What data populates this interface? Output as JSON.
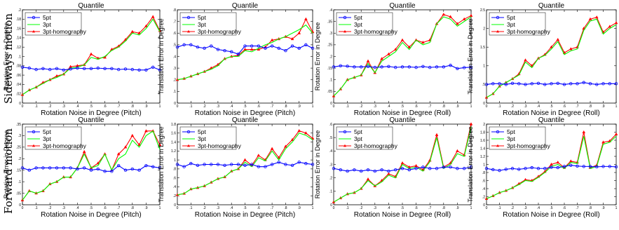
{
  "row_labels": [
    "Sideways motion",
    "Forward motion"
  ],
  "colors": {
    "5pt": "#0000ff",
    "3pt": "#00ff00",
    "3pt-homography": "#ff0000",
    "3pt_line": "#008000"
  },
  "chart_data": [
    {
      "type": "line",
      "title": "Quantile",
      "xlabel": "Rotation Noise in Degree (Pitch)",
      "ylabel": "Rotation Error in Degree",
      "xlim": [
        0,
        1
      ],
      "ylim": [
        0,
        0.2
      ],
      "xticks": [
        0,
        0.1,
        0.2,
        0.3,
        0.4,
        0.5,
        0.6,
        0.7,
        0.8,
        0.9,
        1
      ],
      "yticks": [
        0,
        0.02,
        0.04,
        0.06,
        0.08,
        0.1,
        0.12,
        0.14,
        0.16,
        0.18,
        0.2
      ],
      "legend": "top-left",
      "x": [
        0,
        0.05,
        0.1,
        0.15,
        0.2,
        0.25,
        0.3,
        0.35,
        0.4,
        0.45,
        0.5,
        0.55,
        0.6,
        0.65,
        0.7,
        0.75,
        0.8,
        0.85,
        0.9,
        0.95,
        1
      ],
      "series": [
        {
          "name": "5pt",
          "values": [
            0.077,
            0.075,
            0.072,
            0.074,
            0.072,
            0.074,
            0.071,
            0.073,
            0.075,
            0.074,
            0.074,
            0.075,
            0.074,
            0.074,
            0.072,
            0.073,
            0.072,
            0.071,
            0.071,
            0.077,
            0.071
          ]
        },
        {
          "name": "3pt",
          "values": [
            0.018,
            0.028,
            0.034,
            0.042,
            0.05,
            0.055,
            0.062,
            0.075,
            0.077,
            0.082,
            0.098,
            0.094,
            0.1,
            0.113,
            0.12,
            0.133,
            0.15,
            0.146,
            0.16,
            0.18,
            0.153
          ]
        },
        {
          "name": "3pt-homography",
          "values": [
            0.018,
            0.028,
            0.034,
            0.044,
            0.05,
            0.058,
            0.062,
            0.078,
            0.08,
            0.082,
            0.105,
            0.096,
            0.098,
            0.115,
            0.122,
            0.136,
            0.153,
            0.15,
            0.165,
            0.185,
            0.155
          ]
        }
      ]
    },
    {
      "type": "line",
      "title": "Quantile",
      "xlabel": "Rotation Noise in Degree (Pitch)",
      "ylabel": "Translation Error in Degree",
      "xlim": [
        0,
        1
      ],
      "ylim": [
        0,
        0.8
      ],
      "xticks": [
        0,
        0.1,
        0.2,
        0.3,
        0.4,
        0.5,
        0.6,
        0.7,
        0.8,
        0.9,
        1
      ],
      "yticks": [
        0,
        0.1,
        0.2,
        0.3,
        0.4,
        0.5,
        0.6,
        0.7,
        0.8
      ],
      "legend": "top-left",
      "x": [
        0,
        0.05,
        0.1,
        0.15,
        0.2,
        0.25,
        0.3,
        0.35,
        0.4,
        0.45,
        0.5,
        0.55,
        0.6,
        0.65,
        0.7,
        0.75,
        0.8,
        0.85,
        0.9,
        0.95,
        1
      ],
      "series": [
        {
          "name": "5pt",
          "values": [
            0.48,
            0.5,
            0.5,
            0.48,
            0.47,
            0.49,
            0.46,
            0.45,
            0.44,
            0.42,
            0.49,
            0.49,
            0.49,
            0.47,
            0.49,
            0.47,
            0.45,
            0.49,
            0.47,
            0.5,
            0.47
          ]
        },
        {
          "name": "3pt",
          "values": [
            0.2,
            0.21,
            0.23,
            0.25,
            0.27,
            0.29,
            0.32,
            0.38,
            0.4,
            0.4,
            0.45,
            0.44,
            0.47,
            0.5,
            0.52,
            0.55,
            0.57,
            0.6,
            0.63,
            0.67,
            0.6
          ]
        },
        {
          "name": "3pt-homography",
          "values": [
            0.2,
            0.21,
            0.23,
            0.25,
            0.27,
            0.3,
            0.33,
            0.38,
            0.4,
            0.41,
            0.46,
            0.46,
            0.46,
            0.48,
            0.54,
            0.55,
            0.57,
            0.55,
            0.6,
            0.72,
            0.61
          ]
        }
      ]
    },
    {
      "type": "line",
      "title": "Quantile",
      "xlabel": "Rotation Noise in Degree (Roll)",
      "ylabel": "Rotation Error in Degree",
      "xlim": [
        0,
        1
      ],
      "ylim": [
        0,
        0.4
      ],
      "xticks": [
        0,
        0.1,
        0.2,
        0.3,
        0.4,
        0.5,
        0.6,
        0.7,
        0.8,
        0.9,
        1
      ],
      "yticks": [
        0,
        0.05,
        0.1,
        0.15,
        0.2,
        0.25,
        0.3,
        0.35,
        0.4
      ],
      "legend": "top-left",
      "x": [
        0,
        0.05,
        0.1,
        0.15,
        0.2,
        0.25,
        0.3,
        0.35,
        0.4,
        0.45,
        0.5,
        0.55,
        0.6,
        0.65,
        0.7,
        0.75,
        0.8,
        0.85,
        0.9,
        0.95,
        1
      ],
      "series": [
        {
          "name": "5pt",
          "values": [
            0.155,
            0.16,
            0.158,
            0.155,
            0.155,
            0.157,
            0.153,
            0.155,
            0.157,
            0.153,
            0.155,
            0.155,
            0.153,
            0.157,
            0.153,
            0.155,
            0.155,
            0.162,
            0.148,
            0.152,
            0.154
          ]
        },
        {
          "name": "3pt",
          "values": [
            0.03,
            0.06,
            0.1,
            0.11,
            0.12,
            0.17,
            0.13,
            0.18,
            0.2,
            0.22,
            0.26,
            0.23,
            0.27,
            0.25,
            0.26,
            0.34,
            0.37,
            0.36,
            0.33,
            0.35,
            0.37
          ]
        },
        {
          "name": "3pt-homography",
          "values": [
            0.03,
            0.06,
            0.1,
            0.11,
            0.12,
            0.18,
            0.13,
            0.19,
            0.21,
            0.23,
            0.27,
            0.24,
            0.27,
            0.26,
            0.27,
            0.34,
            0.38,
            0.37,
            0.34,
            0.36,
            0.375
          ]
        }
      ]
    },
    {
      "type": "line",
      "title": "Quantile",
      "xlabel": "Rotation Noise in Degree (Roll)",
      "ylabel": "Translation Error in Degree",
      "xlim": [
        0,
        1
      ],
      "ylim": [
        0,
        2.5
      ],
      "xticks": [
        0,
        0.1,
        0.2,
        0.3,
        0.4,
        0.5,
        0.6,
        0.7,
        0.8,
        0.9,
        1
      ],
      "yticks": [
        0,
        0.5,
        1,
        1.5,
        2,
        2.5
      ],
      "legend": "top-left",
      "x": [
        0,
        0.05,
        0.1,
        0.15,
        0.2,
        0.25,
        0.3,
        0.35,
        0.4,
        0.45,
        0.5,
        0.55,
        0.6,
        0.65,
        0.7,
        0.75,
        0.8,
        0.85,
        0.9,
        0.95,
        1
      ],
      "series": [
        {
          "name": "5pt",
          "values": [
            0.5,
            0.52,
            0.52,
            0.5,
            0.53,
            0.52,
            0.5,
            0.52,
            0.53,
            0.5,
            0.52,
            0.53,
            0.5,
            0.52,
            0.52,
            0.55,
            0.52,
            0.5,
            0.52,
            0.52,
            0.52
          ]
        },
        {
          "name": "3pt",
          "values": [
            0.15,
            0.25,
            0.45,
            0.55,
            0.65,
            0.75,
            1.1,
            0.95,
            1.2,
            1.28,
            1.45,
            1.65,
            1.3,
            1.4,
            1.45,
            1.95,
            2.2,
            2.25,
            1.85,
            2.0,
            2.1
          ]
        },
        {
          "name": "3pt-homography",
          "values": [
            0.15,
            0.25,
            0.45,
            0.55,
            0.65,
            0.78,
            1.15,
            1.0,
            1.2,
            1.3,
            1.5,
            1.7,
            1.35,
            1.45,
            1.5,
            2.0,
            2.25,
            2.3,
            1.9,
            2.05,
            2.15
          ]
        }
      ]
    },
    {
      "type": "line",
      "title": "Quantile",
      "xlabel": "Rotation Noise in Degree (Pitch)",
      "ylabel": "Rotation Error in Degree",
      "xlim": [
        0,
        1
      ],
      "ylim": [
        0,
        0.35
      ],
      "xticks": [
        0,
        0.1,
        0.2,
        0.3,
        0.4,
        0.5,
        0.6,
        0.7,
        0.8,
        0.9,
        1
      ],
      "yticks": [
        0,
        0.05,
        0.1,
        0.15,
        0.2,
        0.25,
        0.3,
        0.35
      ],
      "legend": "top-left",
      "x": [
        0,
        0.05,
        0.1,
        0.15,
        0.2,
        0.25,
        0.3,
        0.35,
        0.4,
        0.45,
        0.5,
        0.55,
        0.6,
        0.65,
        0.7,
        0.75,
        0.8,
        0.85,
        0.9,
        0.95,
        1
      ],
      "series": [
        {
          "name": "5pt",
          "values": [
            0.16,
            0.15,
            0.16,
            0.16,
            0.16,
            0.16,
            0.16,
            0.16,
            0.155,
            0.16,
            0.15,
            0.155,
            0.145,
            0.145,
            0.17,
            0.15,
            0.155,
            0.15,
            0.17,
            0.165,
            0.16
          ]
        },
        {
          "name": "3pt",
          "values": [
            0.02,
            0.06,
            0.05,
            0.06,
            0.09,
            0.1,
            0.12,
            0.12,
            0.16,
            0.22,
            0.16,
            0.17,
            0.22,
            0.15,
            0.2,
            0.22,
            0.28,
            0.25,
            0.3,
            0.32,
            0.24
          ]
        },
        {
          "name": "3pt-homography",
          "values": [
            0.02,
            0.06,
            0.05,
            0.06,
            0.09,
            0.1,
            0.12,
            0.12,
            0.16,
            0.23,
            0.16,
            0.18,
            0.22,
            0.15,
            0.22,
            0.25,
            0.3,
            0.26,
            0.32,
            0.32,
            0.26
          ]
        }
      ]
    },
    {
      "type": "line",
      "title": "Quantile",
      "xlabel": "Rotation Noise in Degree (Pitch)",
      "ylabel": "Translation Error in Degree",
      "xlim": [
        0,
        1
      ],
      "ylim": [
        0,
        1.8
      ],
      "xticks": [
        0,
        0.1,
        0.2,
        0.3,
        0.4,
        0.5,
        0.6,
        0.7,
        0.8,
        0.9,
        1
      ],
      "yticks": [
        0,
        0.2,
        0.4,
        0.6,
        0.8,
        1,
        1.2,
        1.4,
        1.6,
        1.8
      ],
      "legend": "top-left",
      "x": [
        0,
        0.05,
        0.1,
        0.15,
        0.2,
        0.25,
        0.3,
        0.35,
        0.4,
        0.45,
        0.5,
        0.55,
        0.6,
        0.65,
        0.7,
        0.75,
        0.8,
        0.85,
        0.9,
        0.95,
        1
      ],
      "series": [
        {
          "name": "5pt",
          "values": [
            0.9,
            0.85,
            0.92,
            0.88,
            0.9,
            0.9,
            0.9,
            0.88,
            0.9,
            0.9,
            0.88,
            0.9,
            0.85,
            0.85,
            0.9,
            0.95,
            0.9,
            0.88,
            0.95,
            0.92,
            0.9
          ]
        },
        {
          "name": "3pt",
          "values": [
            0.22,
            0.25,
            0.35,
            0.38,
            0.42,
            0.5,
            0.58,
            0.62,
            0.75,
            0.8,
            0.95,
            0.85,
            1.05,
            0.98,
            1.2,
            1.0,
            1.25,
            1.4,
            1.6,
            1.55,
            1.45
          ]
        },
        {
          "name": "3pt-homography",
          "values": [
            0.22,
            0.25,
            0.35,
            0.38,
            0.42,
            0.5,
            0.58,
            0.62,
            0.75,
            0.8,
            1.0,
            0.88,
            1.1,
            1.0,
            1.25,
            1.05,
            1.3,
            1.45,
            1.65,
            1.6,
            1.48
          ]
        }
      ]
    },
    {
      "type": "line",
      "title": "Quantile",
      "xlabel": "Rotation Noise in Degree (Roll)",
      "ylabel": "Rotation Error in Degree",
      "xlim": [
        0,
        1
      ],
      "ylim": [
        0,
        0.6
      ],
      "xticks": [
        0,
        0.1,
        0.2,
        0.3,
        0.4,
        0.5,
        0.6,
        0.7,
        0.8,
        0.9,
        1
      ],
      "yticks": [
        0,
        0.1,
        0.2,
        0.3,
        0.4,
        0.5,
        0.6
      ],
      "legend": "top-left",
      "x": [
        0,
        0.05,
        0.1,
        0.15,
        0.2,
        0.25,
        0.3,
        0.35,
        0.4,
        0.45,
        0.5,
        0.55,
        0.6,
        0.65,
        0.7,
        0.75,
        0.8,
        0.85,
        0.9,
        0.95,
        1
      ],
      "series": [
        {
          "name": "5pt",
          "values": [
            0.27,
            0.26,
            0.25,
            0.26,
            0.25,
            0.26,
            0.25,
            0.26,
            0.25,
            0.26,
            0.27,
            0.26,
            0.27,
            0.28,
            0.27,
            0.27,
            0.28,
            0.28,
            0.27,
            0.27,
            0.28
          ]
        },
        {
          "name": "3pt",
          "values": [
            0.02,
            0.05,
            0.08,
            0.09,
            0.12,
            0.18,
            0.14,
            0.17,
            0.22,
            0.2,
            0.3,
            0.27,
            0.28,
            0.25,
            0.32,
            0.5,
            0.27,
            0.3,
            0.38,
            0.36,
            0.58
          ]
        },
        {
          "name": "3pt-homography",
          "values": [
            0.02,
            0.05,
            0.08,
            0.09,
            0.12,
            0.19,
            0.14,
            0.18,
            0.23,
            0.21,
            0.31,
            0.28,
            0.29,
            0.26,
            0.33,
            0.52,
            0.28,
            0.31,
            0.4,
            0.37,
            0.6
          ]
        }
      ]
    },
    {
      "type": "line",
      "title": "Quantile",
      "xlabel": "Rotation Noise in Degree (Roll)",
      "ylabel": "Translation Error in Degree",
      "xlim": [
        0,
        1
      ],
      "ylim": [
        0,
        2
      ],
      "xticks": [
        0,
        0.1,
        0.2,
        0.3,
        0.4,
        0.5,
        0.6,
        0.7,
        0.8,
        0.9,
        1
      ],
      "yticks": [
        0,
        0.2,
        0.4,
        0.6,
        0.8,
        1,
        1.2,
        1.4,
        1.6,
        1.8,
        2
      ],
      "legend": "top-left",
      "x": [
        0,
        0.05,
        0.1,
        0.15,
        0.2,
        0.25,
        0.3,
        0.35,
        0.4,
        0.45,
        0.5,
        0.55,
        0.6,
        0.65,
        0.7,
        0.75,
        0.8,
        0.85,
        0.9,
        0.95,
        1
      ],
      "series": [
        {
          "name": "5pt",
          "values": [
            0.9,
            0.87,
            0.85,
            0.88,
            0.9,
            0.88,
            0.9,
            0.92,
            0.9,
            0.9,
            0.93,
            0.92,
            0.95,
            0.98,
            0.96,
            0.95,
            0.95,
            0.94,
            0.95,
            0.95,
            0.94
          ]
        },
        {
          "name": "3pt",
          "values": [
            0.15,
            0.22,
            0.3,
            0.35,
            0.42,
            0.5,
            0.6,
            0.58,
            0.68,
            0.8,
            0.95,
            1.0,
            0.9,
            1.05,
            1.02,
            1.7,
            0.9,
            0.95,
            1.5,
            1.55,
            1.7
          ]
        },
        {
          "name": "3pt-homography",
          "values": [
            0.15,
            0.22,
            0.3,
            0.35,
            0.42,
            0.52,
            0.62,
            0.6,
            0.7,
            0.82,
            1.0,
            1.05,
            0.92,
            1.08,
            1.05,
            1.8,
            0.92,
            0.98,
            1.55,
            1.58,
            1.75
          ]
        }
      ]
    }
  ]
}
